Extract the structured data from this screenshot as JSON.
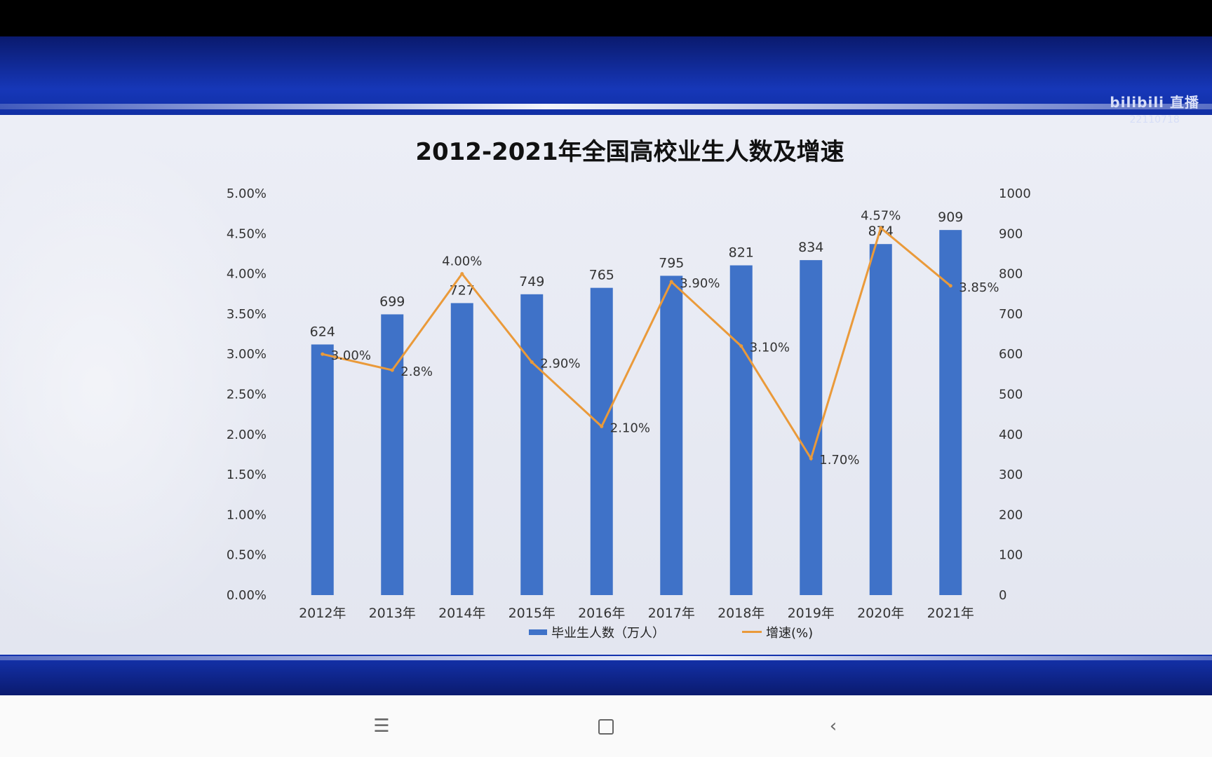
{
  "watermark": {
    "brand": "bilibili 直播",
    "room": "22110718"
  },
  "chart_data": {
    "type": "bar+line",
    "title": "2012-2021年全国高校业生人数及增速",
    "categories": [
      "2012年",
      "2013年",
      "2014年",
      "2015年",
      "2016年",
      "2017年",
      "2018年",
      "2019年",
      "2020年",
      "2021年"
    ],
    "series": [
      {
        "name": "毕业生人数（万人）",
        "type": "bar",
        "axis": "right",
        "color": "#3f72c8",
        "values": [
          624,
          699,
          727,
          749,
          765,
          795,
          821,
          834,
          874,
          909
        ],
        "labels": [
          "624",
          "699",
          "727",
          "749",
          "765",
          "795",
          "821",
          "834",
          "874",
          "909"
        ]
      },
      {
        "name": "增速(%)",
        "type": "line",
        "axis": "left",
        "color": "#ea9a3a",
        "values": [
          3.0,
          2.8,
          4.0,
          2.9,
          2.1,
          3.9,
          3.1,
          1.7,
          4.57,
          3.85
        ],
        "labels": [
          "3.00%",
          "2.8%",
          "4.00%",
          "2.90%",
          "2.10%",
          "3.90%",
          "3.10%",
          "1.70%",
          "4.57%",
          "3.85%"
        ]
      }
    ],
    "left_axis": {
      "ticks": [
        "0.00%",
        "0.50%",
        "1.00%",
        "1.50%",
        "2.00%",
        "2.50%",
        "3.00%",
        "3.50%",
        "4.00%",
        "4.50%",
        "5.00%"
      ],
      "ylim": [
        0,
        5
      ]
    },
    "right_axis": {
      "ticks": [
        "0",
        "100",
        "200",
        "300",
        "400",
        "500",
        "600",
        "700",
        "800",
        "900",
        "1000"
      ],
      "ylim": [
        0,
        1000
      ]
    },
    "legend": "bottom-center",
    "grid": false
  },
  "nav": {
    "menu_icon": "menu-icon",
    "home_icon": "home-icon",
    "back_icon": "back-icon"
  }
}
